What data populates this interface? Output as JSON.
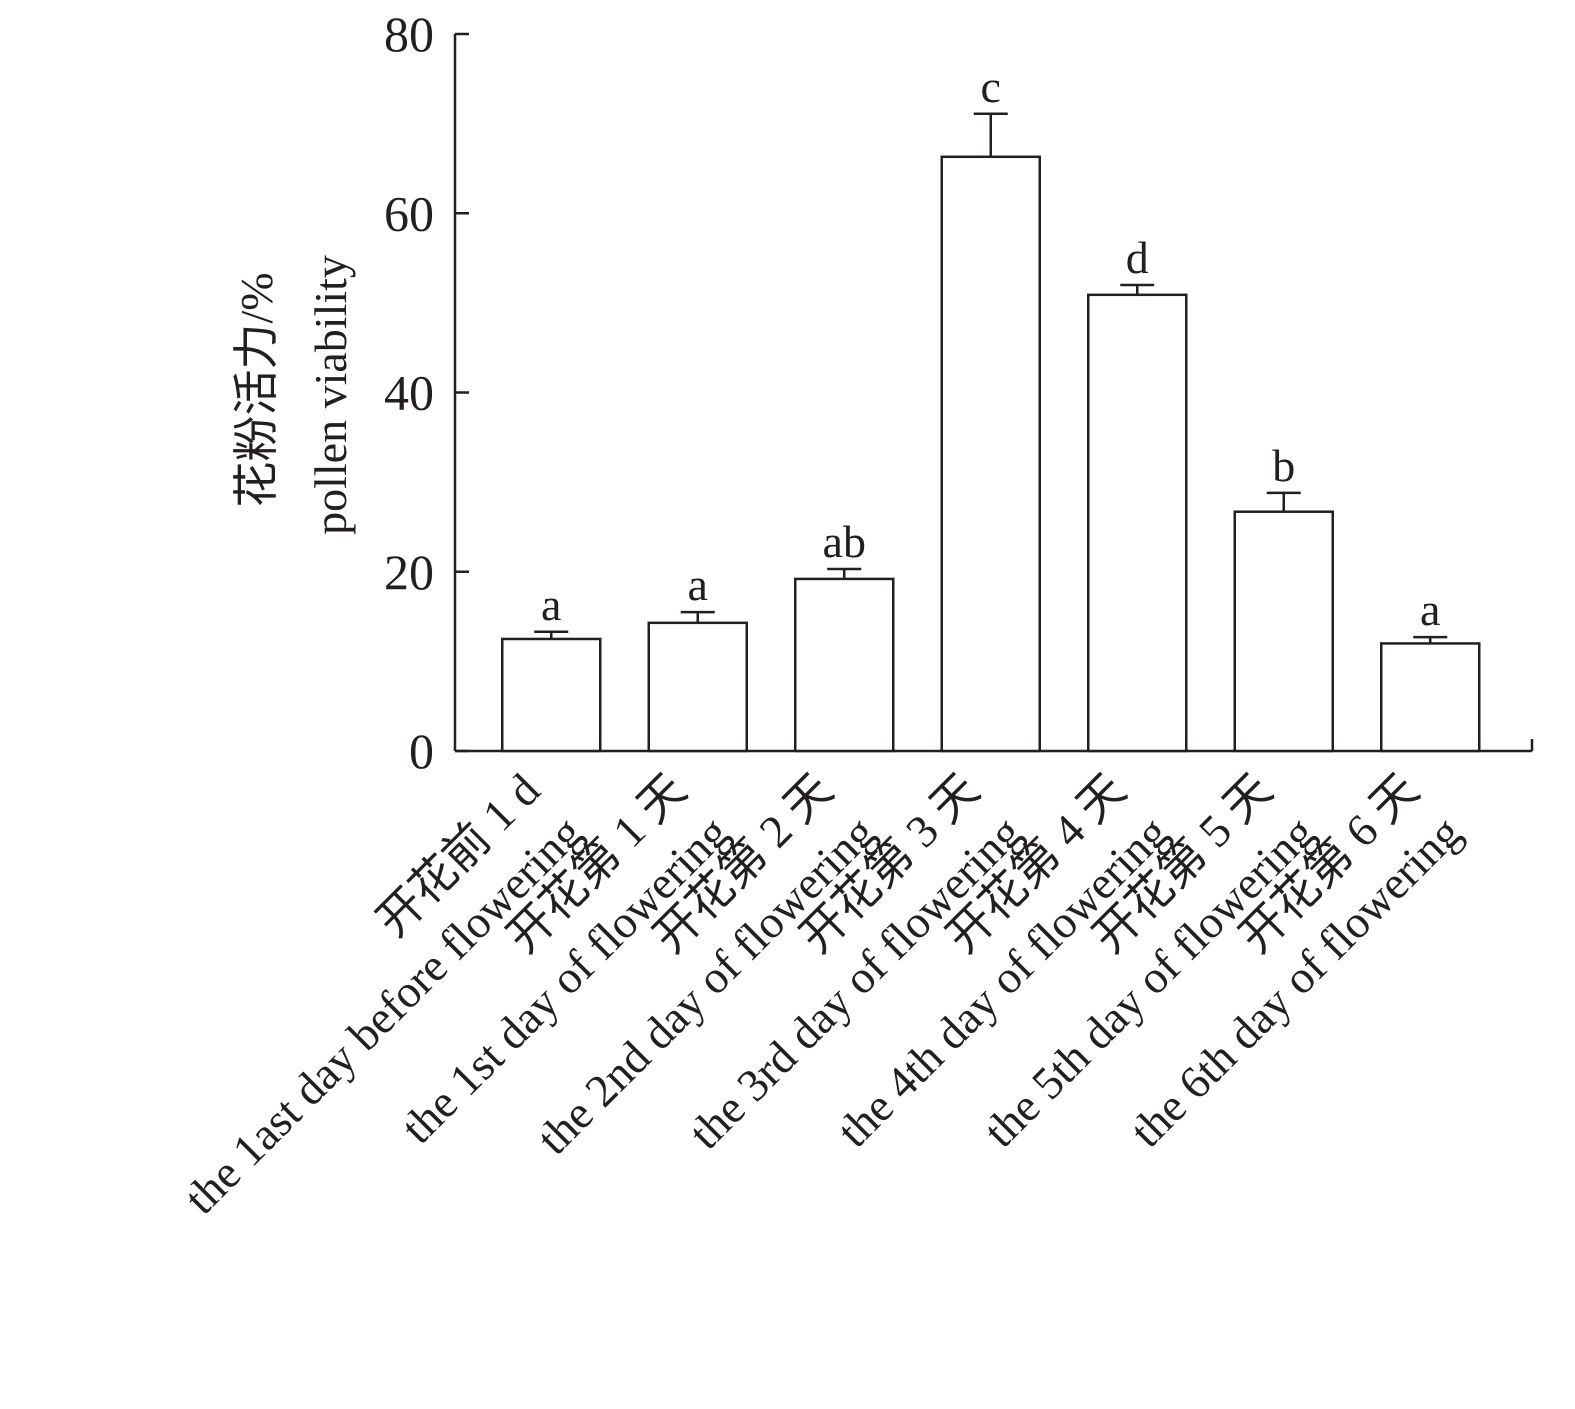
{
  "chart_data": {
    "type": "bar",
    "title": "",
    "ylabel_cn": "花粉活力/%",
    "ylabel_en": "pollen viability",
    "ylim": [
      0,
      80
    ],
    "yticks": [
      0,
      20,
      40,
      60,
      80
    ],
    "grid": false,
    "legend": "none",
    "bar_fill": "#ffffff",
    "stroke_color": "#231f20",
    "categories": [
      {
        "cn": "开花前 1 d",
        "en": "the 1ast day before flowering"
      },
      {
        "cn": "开花第 1 天",
        "en": "the 1st day of flowering"
      },
      {
        "cn": "开花第 2 天",
        "en": "the 2nd day of flowering"
      },
      {
        "cn": "开花第 3 天",
        "en": "the 3rd day of flowering"
      },
      {
        "cn": "开花第 4 天",
        "en": "the 4th day of flowering"
      },
      {
        "cn": "开花第 5 天",
        "en": "the 5th day of flowering"
      },
      {
        "cn": "开花第 6 天",
        "en": "the 6th day of flowering"
      }
    ],
    "values": [
      12.5,
      14.3,
      19.2,
      66.3,
      50.9,
      26.7,
      12.0
    ],
    "errors": [
      0.8,
      1.2,
      1.1,
      4.8,
      1.1,
      2.1,
      0.7
    ],
    "significance": [
      "a",
      "a",
      "ab",
      "c",
      "d",
      "b",
      "a"
    ]
  }
}
